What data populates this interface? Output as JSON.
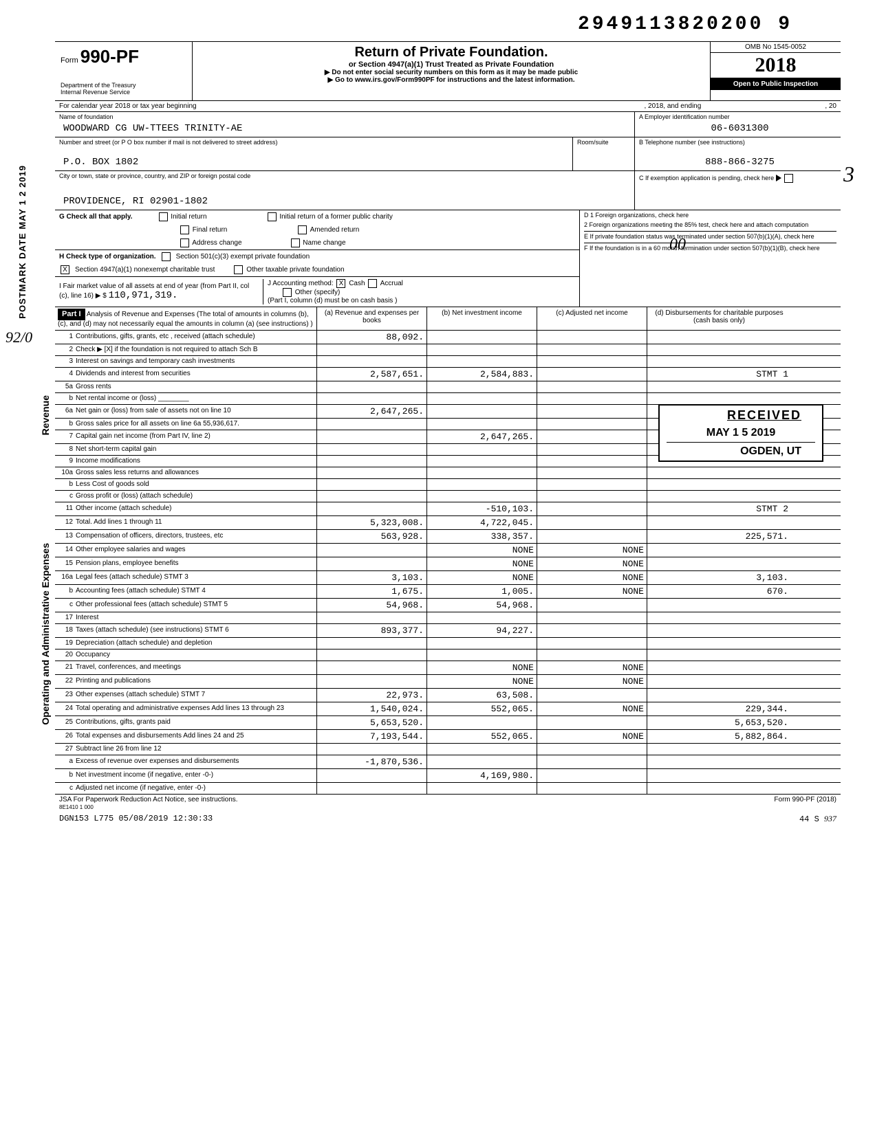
{
  "doc_id": "2949113820200 9",
  "form": {
    "word": "Form",
    "number": "990-PF",
    "dept": "Department of the Treasury\nInternal Revenue Service"
  },
  "title": {
    "main": "Return of Private Foundation.",
    "sub": "or Section 4947(a)(1) Trust Treated as Private Foundation",
    "note1": "▶ Do not enter social security numbers on this form as it may be made public",
    "note2": "▶ Go to www.irs.gov/Form990PF for instructions and the latest information."
  },
  "yearbox": {
    "omb": "OMB No 1545-0052",
    "year": "2018",
    "inspect": "Open to Public Inspection"
  },
  "cal_line": {
    "prefix": "For calendar year 2018 or tax year beginning",
    "mid": ", 2018, and ending",
    "suffix": ", 20"
  },
  "foundation": {
    "label": "Name of foundation",
    "name": "WOODWARD CG UW-TTEES TRINITY-AE",
    "ein_label": "A  Employer identification number",
    "ein": "06-6031300",
    "addr_label": "Number and street (or P O  box number if mail is not delivered to street address)",
    "room_label": "Room/suite",
    "phone_label": "B  Telephone number (see instructions)",
    "phone": "888-866-3275",
    "addr": "P.O. BOX 1802",
    "city_label": "City or town, state or province, country, and ZIP or foreign postal code",
    "city": "PROVIDENCE, RI 02901-1802",
    "exempt_label": "C  If exemption application is pending, check here"
  },
  "g_row": {
    "label": "G Check all that apply.",
    "opts": [
      "Initial return",
      "Final return",
      "Address change",
      "Initial return of a former public charity",
      "Amended return",
      "Name change"
    ]
  },
  "h_row": {
    "label": "H  Check type of organization.",
    "opt1": "Section 501(c)(3) exempt private foundation",
    "opt2": "Section 4947(a)(1) nonexempt charitable trust",
    "opt3": "Other taxable private foundation"
  },
  "i_row": {
    "label": "I   Fair market value of all assets at end of year (from Part II, col (c), line 16) ▶ $",
    "value": "110,971,319."
  },
  "j_row": {
    "label": "J Accounting method:",
    "opts": [
      "Cash",
      "Accrual",
      "Other (specify)"
    ],
    "note": "(Part I, column (d) must be on cash basis )"
  },
  "d_row": "D  1  Foreign organizations, check here",
  "d2_row": "2  Foreign organizations meeting the 85% test, check here and attach computation",
  "e_row": "E  If private foundation status was terminated under section 507(b)(1)(A), check here",
  "f_row": "F  If the foundation is in a 60 month termination under section 507(b)(1)(B), check here",
  "part1": {
    "label": "Part I",
    "desc": "Analysis of Revenue and Expenses (The total of amounts in columns (b), (c), and (d) may not necessarily equal the amounts in column (a) (see instructions) )",
    "col_a": "(a) Revenue and expenses per books",
    "col_b": "(b) Net investment income",
    "col_c": "(c) Adjusted net income",
    "col_d": "(d) Disbursements for charitable purposes (cash basis only)"
  },
  "lines": [
    {
      "n": "1",
      "t": "Contributions, gifts, grants, etc , received (attach schedule)",
      "a": "88,092.",
      "b": "",
      "c": "",
      "d": ""
    },
    {
      "n": "2",
      "t": "Check ▶ [X] if the foundation is not required to attach Sch B",
      "a": "",
      "b": "",
      "c": "",
      "d": ""
    },
    {
      "n": "3",
      "t": "Interest on savings and temporary cash investments",
      "a": "",
      "b": "",
      "c": "",
      "d": ""
    },
    {
      "n": "4",
      "t": "Dividends and interest from securities",
      "a": "2,587,651.",
      "b": "2,584,883.",
      "c": "",
      "d": "STMT 1"
    },
    {
      "n": "5a",
      "t": "Gross rents",
      "a": "",
      "b": "",
      "c": "",
      "d": ""
    },
    {
      "n": "b",
      "t": "Net rental income or (loss) ________",
      "a": "",
      "b": "",
      "c": "",
      "d": ""
    },
    {
      "n": "6a",
      "t": "Net gain or (loss) from sale of assets not on line 10",
      "a": "2,647,265.",
      "b": "",
      "c": "",
      "d": ""
    },
    {
      "n": "b",
      "t": "Gross sales price for all assets on line 6a    55,936,617.",
      "a": "",
      "b": "",
      "c": "",
      "d": ""
    },
    {
      "n": "7",
      "t": "Capital gain net income (from Part IV, line 2)",
      "a": "",
      "b": "2,647,265.",
      "c": "",
      "d": ""
    },
    {
      "n": "8",
      "t": "Net short-term capital gain",
      "a": "",
      "b": "",
      "c": "",
      "d": ""
    },
    {
      "n": "9",
      "t": "Income modifications",
      "a": "",
      "b": "",
      "c": "",
      "d": ""
    },
    {
      "n": "10a",
      "t": "Gross sales less returns and allowances",
      "a": "",
      "b": "",
      "c": "",
      "d": ""
    },
    {
      "n": "b",
      "t": "Less Cost of goods sold",
      "a": "",
      "b": "",
      "c": "",
      "d": ""
    },
    {
      "n": "c",
      "t": "Gross profit or (loss) (attach schedule)",
      "a": "",
      "b": "",
      "c": "",
      "d": ""
    },
    {
      "n": "11",
      "t": "Other income (attach schedule)",
      "a": "",
      "b": "-510,103.",
      "c": "",
      "d": "STMT 2"
    },
    {
      "n": "12",
      "t": "Total. Add lines 1 through 11",
      "a": "5,323,008.",
      "b": "4,722,045.",
      "c": "",
      "d": ""
    },
    {
      "n": "13",
      "t": "Compensation of officers, directors, trustees, etc",
      "a": "563,928.",
      "b": "338,357.",
      "c": "",
      "d": "225,571."
    },
    {
      "n": "14",
      "t": "Other employee salaries and wages",
      "a": "",
      "b": "NONE",
      "c": "NONE",
      "d": ""
    },
    {
      "n": "15",
      "t": "Pension plans, employee benefits",
      "a": "",
      "b": "NONE",
      "c": "NONE",
      "d": ""
    },
    {
      "n": "16a",
      "t": "Legal fees (attach schedule)     STMT 3",
      "a": "3,103.",
      "b": "NONE",
      "c": "NONE",
      "d": "3,103."
    },
    {
      "n": "b",
      "t": "Accounting fees (attach schedule) STMT 4",
      "a": "1,675.",
      "b": "1,005.",
      "c": "NONE",
      "d": "670."
    },
    {
      "n": "c",
      "t": "Other professional fees (attach schedule) STMT 5",
      "a": "54,968.",
      "b": "54,968.",
      "c": "",
      "d": ""
    },
    {
      "n": "17",
      "t": "Interest",
      "a": "",
      "b": "",
      "c": "",
      "d": ""
    },
    {
      "n": "18",
      "t": "Taxes (attach schedule) (see instructions) STMT 6",
      "a": "893,377.",
      "b": "94,227.",
      "c": "",
      "d": ""
    },
    {
      "n": "19",
      "t": "Depreciation (attach schedule) and depletion",
      "a": "",
      "b": "",
      "c": "",
      "d": ""
    },
    {
      "n": "20",
      "t": "Occupancy",
      "a": "",
      "b": "",
      "c": "",
      "d": ""
    },
    {
      "n": "21",
      "t": "Travel, conferences, and meetings",
      "a": "",
      "b": "NONE",
      "c": "NONE",
      "d": ""
    },
    {
      "n": "22",
      "t": "Printing and publications",
      "a": "",
      "b": "NONE",
      "c": "NONE",
      "d": ""
    },
    {
      "n": "23",
      "t": "Other expenses (attach schedule) STMT 7",
      "a": "22,973.",
      "b": "63,508.",
      "c": "",
      "d": ""
    },
    {
      "n": "24",
      "t": "Total operating and administrative expenses Add lines 13 through 23",
      "a": "1,540,024.",
      "b": "552,065.",
      "c": "NONE",
      "d": "229,344."
    },
    {
      "n": "25",
      "t": "Contributions, gifts, grants paid",
      "a": "5,653,520.",
      "b": "",
      "c": "",
      "d": "5,653,520."
    },
    {
      "n": "26",
      "t": "Total expenses and disbursements Add lines 24 and 25",
      "a": "7,193,544.",
      "b": "552,065.",
      "c": "NONE",
      "d": "5,882,864."
    },
    {
      "n": "27",
      "t": "Subtract line 26 from line 12",
      "a": "",
      "b": "",
      "c": "",
      "d": ""
    },
    {
      "n": "a",
      "t": "Excess of revenue over expenses and disbursements",
      "a": "-1,870,536.",
      "b": "",
      "c": "",
      "d": ""
    },
    {
      "n": "b",
      "t": "Net investment income (if negative, enter -0-)",
      "a": "",
      "b": "4,169,980.",
      "c": "",
      "d": ""
    },
    {
      "n": "c",
      "t": "Adjusted net income (if negative, enter -0-)",
      "a": "",
      "b": "",
      "c": "",
      "d": ""
    }
  ],
  "received": {
    "r1": "RECEIVED",
    "r2": "MAY 1 5 2019",
    "r3": "OGDEN, UT"
  },
  "footer": {
    "left": "JSA For Paperwork Reduction Act Notice, see instructions.",
    "left2": "8E1410 1 000",
    "right": "Form 990-PF (2018)",
    "bottom_left": "DGN153 L775 05/08/2019 12:30:33",
    "bottom_right": "44    S"
  },
  "postmark": "POSTMARK DATE  MAY 1 2 2019",
  "rev_label": "Revenue",
  "opex_text": "Operating and Administrative Expenses",
  "hand_3": "3",
  "hand_92": "92/0",
  "hand_00": "00",
  "hand_937": "937"
}
